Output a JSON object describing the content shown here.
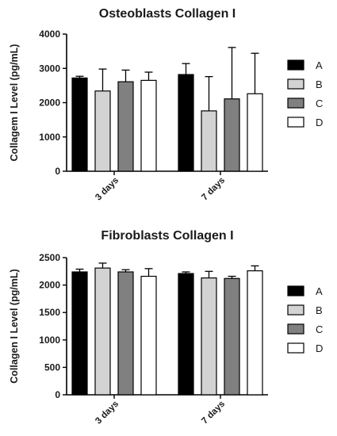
{
  "chart_data": [
    {
      "type": "bar",
      "title": "Osteoblasts Collagen I",
      "ylabel": "Collagem I Level (pg/mL)",
      "xlabel": "",
      "categories": [
        "3 days",
        "7 days"
      ],
      "ylim": [
        0,
        4000
      ],
      "yticks": [
        0,
        1000,
        2000,
        3000,
        4000
      ],
      "error_bars": true,
      "legend": "right",
      "series": [
        {
          "name": "A",
          "color": "#000000",
          "values": [
            2720,
            2820
          ],
          "errors": [
            50,
            320
          ]
        },
        {
          "name": "B",
          "color": "#d3d3d3",
          "values": [
            2340,
            1760
          ],
          "errors": [
            640,
            1000
          ]
        },
        {
          "name": "C",
          "color": "#808080",
          "values": [
            2610,
            2110
          ],
          "errors": [
            340,
            1500
          ]
        },
        {
          "name": "D",
          "color": "#ffffff",
          "values": [
            2650,
            2260
          ],
          "errors": [
            240,
            1180
          ]
        }
      ]
    },
    {
      "type": "bar",
      "title": "Fibroblasts Collagen I",
      "ylabel": "Collagen I Level (pg/mL)",
      "xlabel": "",
      "categories": [
        "3 days",
        "7 days"
      ],
      "ylim": [
        0,
        2500
      ],
      "yticks": [
        0,
        500,
        1000,
        1500,
        2000,
        2500
      ],
      "error_bars": true,
      "legend": "right",
      "series": [
        {
          "name": "A",
          "color": "#000000",
          "values": [
            2240,
            2210
          ],
          "errors": [
            50,
            30
          ]
        },
        {
          "name": "B",
          "color": "#d3d3d3",
          "values": [
            2310,
            2130
          ],
          "errors": [
            90,
            120
          ]
        },
        {
          "name": "C",
          "color": "#808080",
          "values": [
            2240,
            2120
          ],
          "errors": [
            40,
            40
          ]
        },
        {
          "name": "D",
          "color": "#ffffff",
          "values": [
            2160,
            2260
          ],
          "errors": [
            140,
            90
          ]
        }
      ]
    }
  ]
}
